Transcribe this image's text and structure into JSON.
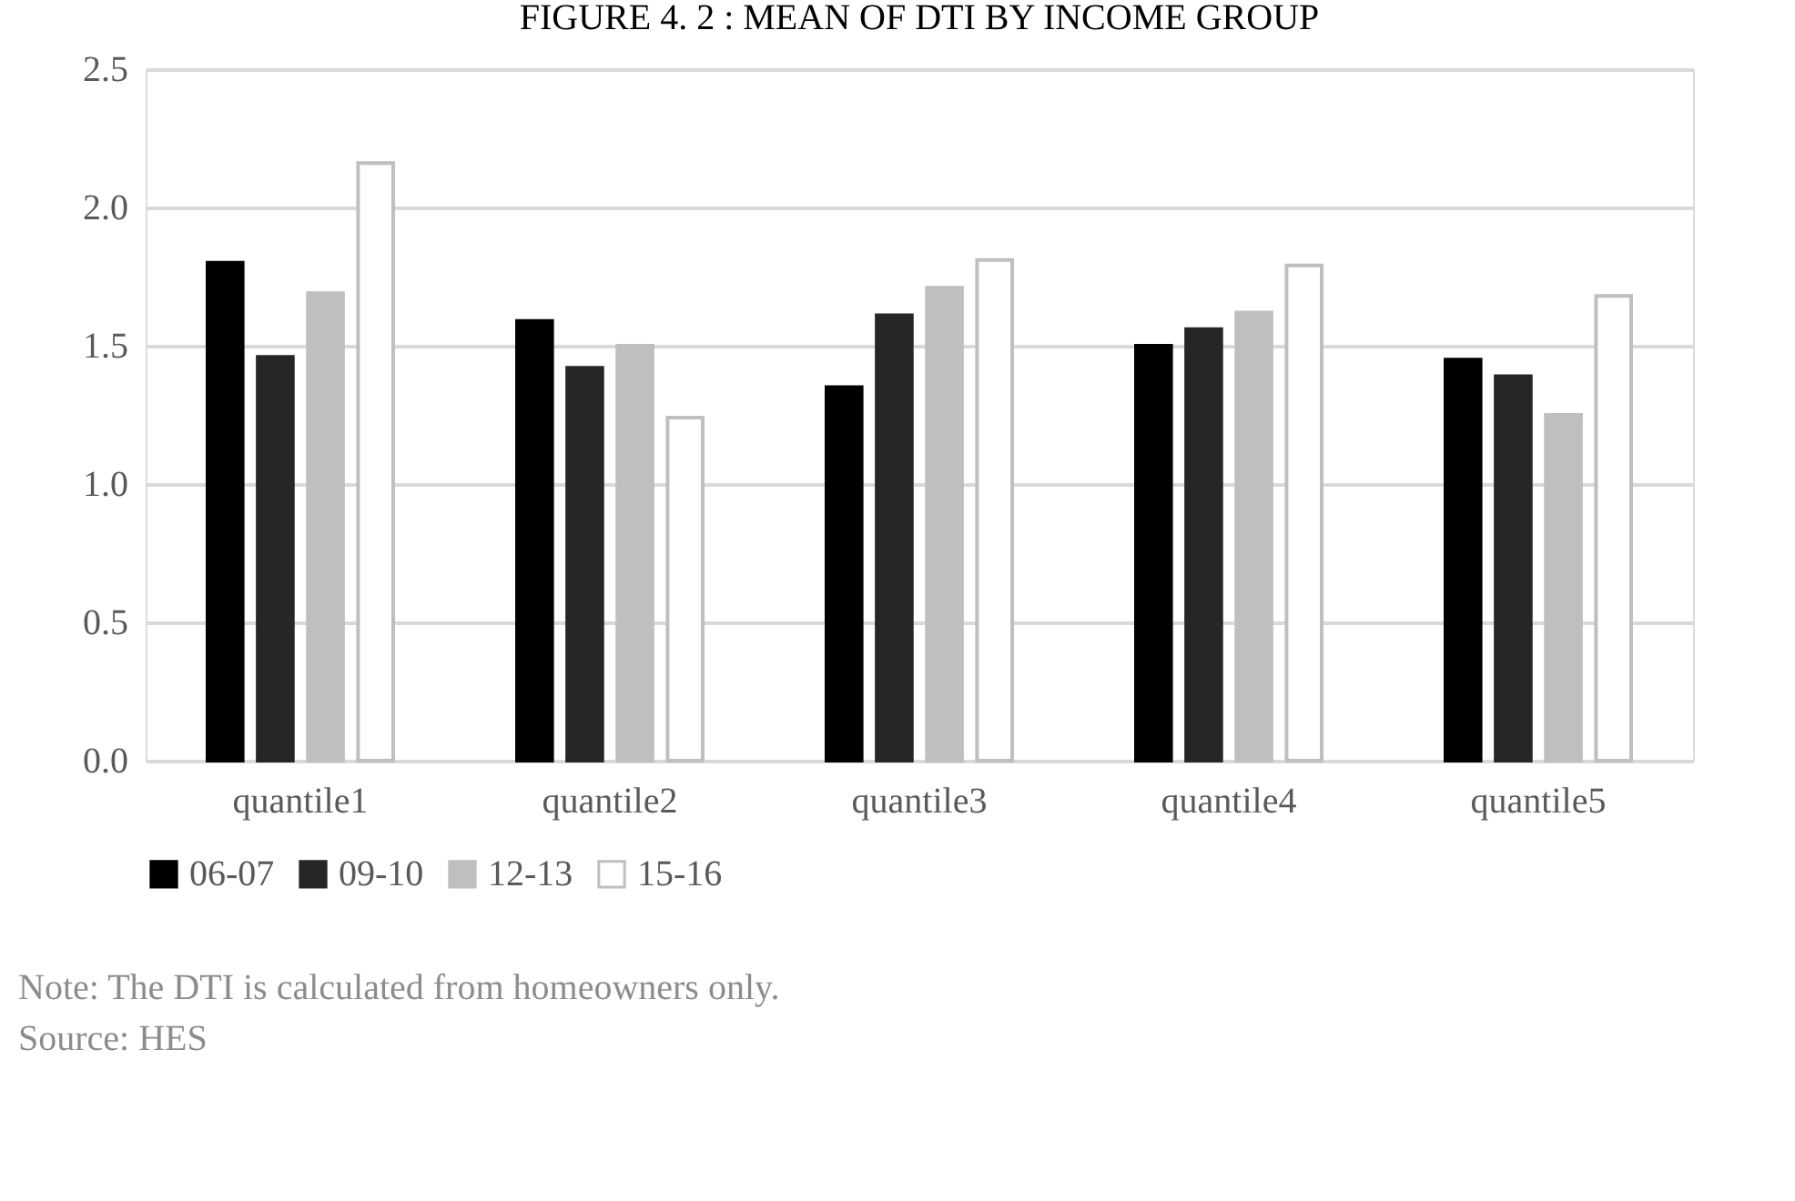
{
  "chart_data": {
    "type": "bar",
    "title": "FIGURE 4. 2 : MEAN OF DTI BY INCOME GROUP",
    "categories": [
      "quantile1",
      "quantile2",
      "quantile3",
      "quantile4",
      "quantile5"
    ],
    "series": [
      {
        "name": "06-07",
        "color": "#000000",
        "values": [
          1.8,
          1.59,
          1.35,
          1.5,
          1.45
        ]
      },
      {
        "name": "09-10",
        "color": "#262626",
        "values": [
          1.46,
          1.42,
          1.61,
          1.56,
          1.39
        ]
      },
      {
        "name": "12-13",
        "color": "#bfbfbf",
        "values": [
          1.69,
          1.5,
          1.71,
          1.62,
          1.25
        ]
      },
      {
        "name": "15-16",
        "color": "#ffffff",
        "values": [
          2.16,
          1.24,
          1.81,
          1.79,
          1.68
        ]
      }
    ],
    "ylim": [
      0,
      2.5
    ],
    "yticks": [
      {
        "value": 0,
        "label": "0.0"
      },
      {
        "value": 0.5,
        "label": "0.5"
      },
      {
        "value": 1,
        "label": "1.0"
      },
      {
        "value": 1.5,
        "label": "1.5"
      },
      {
        "value": 2,
        "label": "2.0"
      },
      {
        "value": 2.5,
        "label": "2.5"
      }
    ],
    "grid": "y",
    "legend": "bottom",
    "annotations": [
      "Note: The DTI is calculated from homeowners only.",
      "Source: HES"
    ]
  }
}
